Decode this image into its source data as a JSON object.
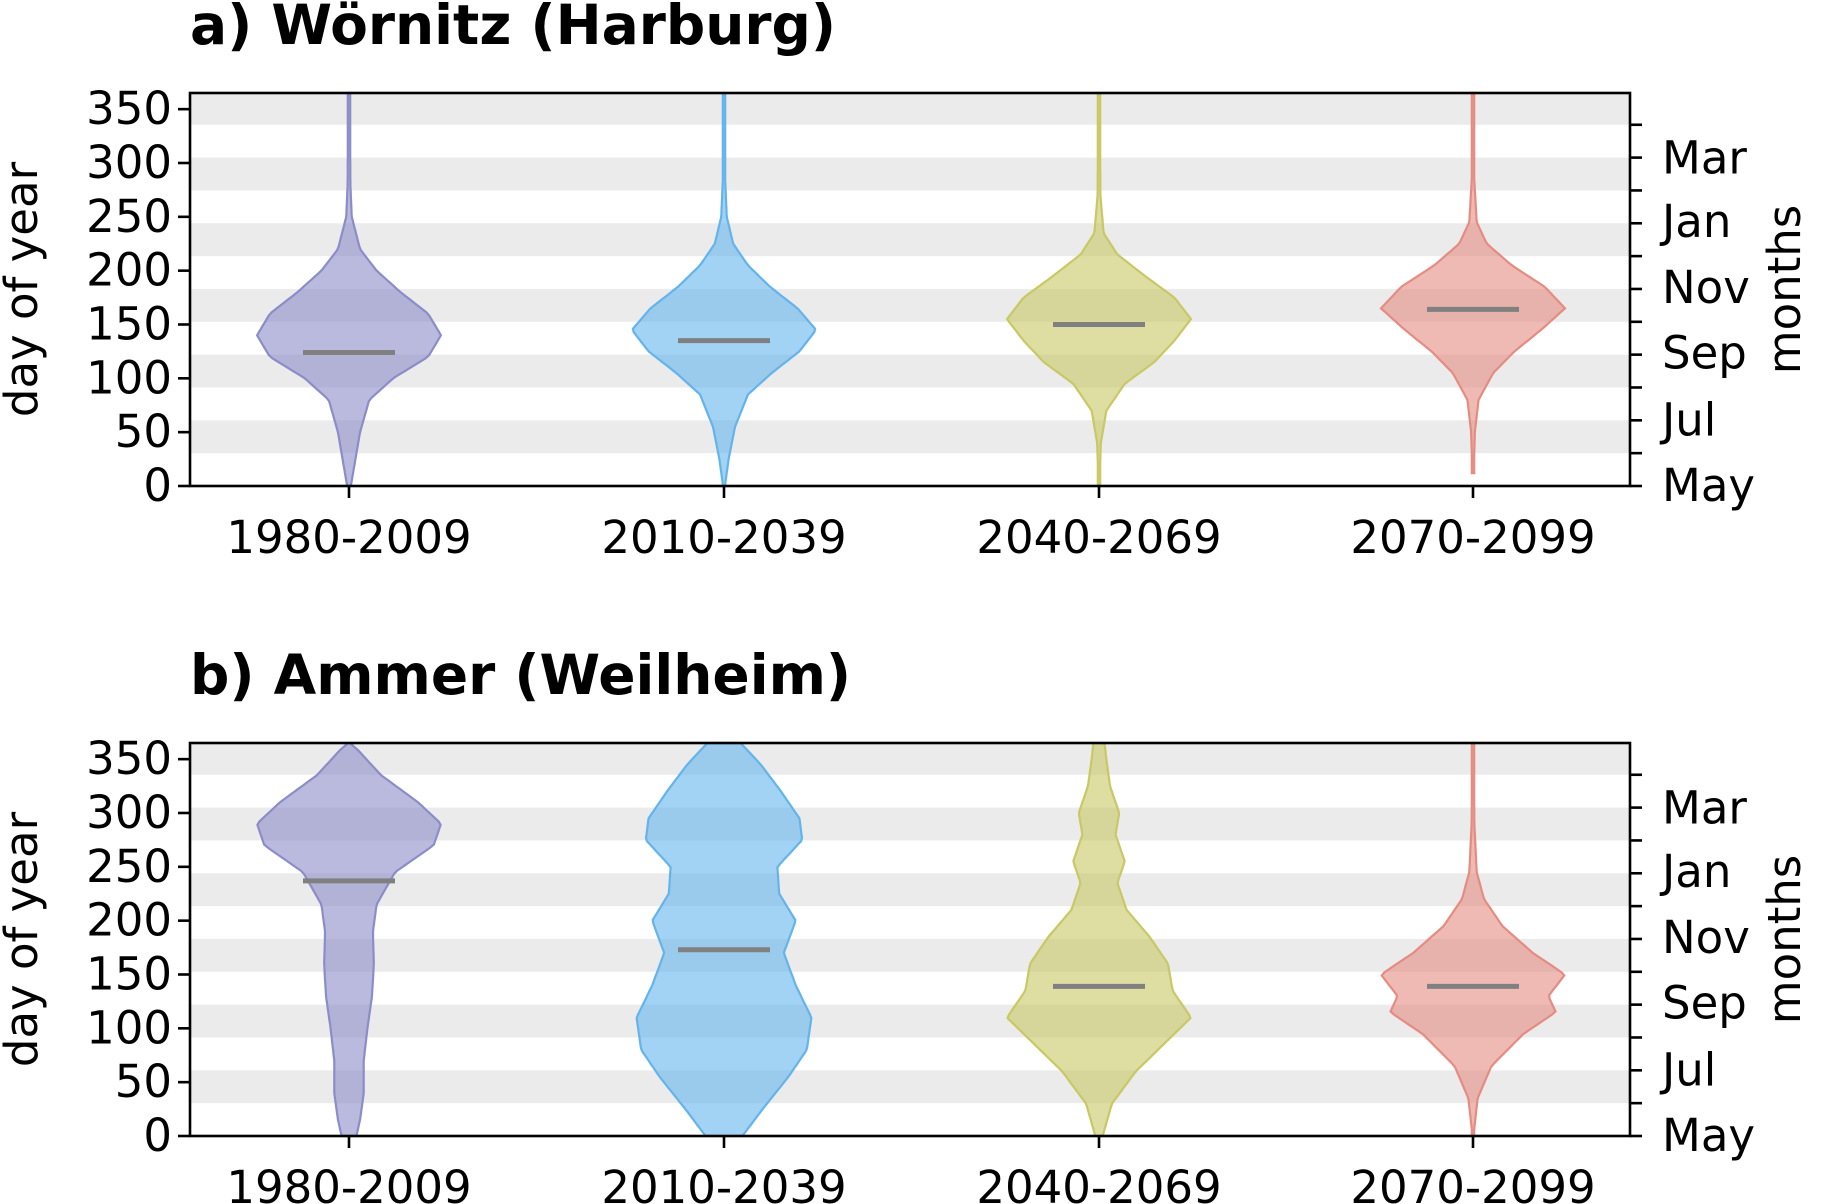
{
  "chart_data": [
    {
      "type": "violin",
      "title": "a) Wörnitz (Harburg)",
      "ylabel": "day of year",
      "y2label": "months",
      "ylim": [
        0,
        365
      ],
      "yticks": [
        0,
        50,
        100,
        150,
        200,
        250,
        300,
        350
      ],
      "month_ticks": [
        "May",
        "Jul",
        "Sep",
        "Nov",
        "Jan",
        "Mar"
      ],
      "month_tick_days": [
        0,
        61,
        123,
        184,
        245,
        304
      ],
      "grid": "horizontal bands (alternate months)",
      "categories": [
        "1980-2009",
        "2010-2039",
        "2040-2069",
        "2070-2099"
      ],
      "colors": [
        "#8c8cc8",
        "#64b4ec",
        "#c8c864",
        "#e48c82"
      ],
      "medians": [
        124,
        135,
        150,
        164
      ],
      "series": [
        {
          "range": [
            0,
            365
          ],
          "profile": [
            [
              0,
              0.02
            ],
            [
              20,
              0.06
            ],
            [
              50,
              0.12
            ],
            [
              80,
              0.22
            ],
            [
              100,
              0.48
            ],
            [
              120,
              0.86
            ],
            [
              140,
              1.0
            ],
            [
              160,
              0.86
            ],
            [
              180,
              0.56
            ],
            [
              200,
              0.3
            ],
            [
              220,
              0.12
            ],
            [
              250,
              0.03
            ],
            [
              280,
              0.015
            ],
            [
              365,
              0.01
            ]
          ]
        },
        {
          "range": [
            0,
            365
          ],
          "profile": [
            [
              0,
              0.01
            ],
            [
              25,
              0.05
            ],
            [
              55,
              0.12
            ],
            [
              85,
              0.26
            ],
            [
              105,
              0.52
            ],
            [
              125,
              0.82
            ],
            [
              145,
              1.0
            ],
            [
              165,
              0.8
            ],
            [
              185,
              0.5
            ],
            [
              205,
              0.26
            ],
            [
              225,
              0.1
            ],
            [
              250,
              0.03
            ],
            [
              290,
              0.01
            ],
            [
              365,
              0.008
            ]
          ]
        },
        {
          "range": [
            0,
            365
          ],
          "profile": [
            [
              0,
              0.005
            ],
            [
              40,
              0.02
            ],
            [
              70,
              0.08
            ],
            [
              95,
              0.28
            ],
            [
              115,
              0.6
            ],
            [
              135,
              0.82
            ],
            [
              155,
              1.0
            ],
            [
              175,
              0.82
            ],
            [
              195,
              0.5
            ],
            [
              215,
              0.2
            ],
            [
              235,
              0.05
            ],
            [
              270,
              0.015
            ],
            [
              365,
              0.008
            ]
          ]
        },
        {
          "range": [
            12,
            365
          ],
          "profile": [
            [
              12,
              0.008
            ],
            [
              50,
              0.02
            ],
            [
              80,
              0.06
            ],
            [
              105,
              0.22
            ],
            [
              125,
              0.45
            ],
            [
              145,
              0.74
            ],
            [
              165,
              1.0
            ],
            [
              185,
              0.78
            ],
            [
              205,
              0.42
            ],
            [
              225,
              0.15
            ],
            [
              245,
              0.04
            ],
            [
              290,
              0.01
            ],
            [
              365,
              0.008
            ]
          ]
        }
      ]
    },
    {
      "type": "violin",
      "title": "b) Ammer (Weilheim)",
      "ylabel": "day of year",
      "y2label": "months",
      "ylim": [
        0,
        365
      ],
      "yticks": [
        0,
        50,
        100,
        150,
        200,
        250,
        300,
        350
      ],
      "month_ticks": [
        "May",
        "Jul",
        "Sep",
        "Nov",
        "Jan",
        "Mar"
      ],
      "month_tick_days": [
        0,
        61,
        123,
        184,
        245,
        304
      ],
      "grid": "horizontal bands (alternate months)",
      "categories": [
        "1980-2009",
        "2010-2039",
        "2040-2069",
        "2070-2099"
      ],
      "colors": [
        "#8c8cc8",
        "#64b4ec",
        "#c8c864",
        "#e48c82"
      ],
      "medians": [
        237,
        173,
        139,
        139
      ],
      "series": [
        {
          "range": [
            0,
            365
          ],
          "profile": [
            [
              0,
              0.08
            ],
            [
              15,
              0.12
            ],
            [
              40,
              0.16
            ],
            [
              70,
              0.16
            ],
            [
              100,
              0.2
            ],
            [
              130,
              0.25
            ],
            [
              160,
              0.27
            ],
            [
              190,
              0.26
            ],
            [
              215,
              0.3
            ],
            [
              245,
              0.5
            ],
            [
              270,
              0.92
            ],
            [
              290,
              1.0
            ],
            [
              310,
              0.75
            ],
            [
              335,
              0.35
            ],
            [
              360,
              0.08
            ],
            [
              365,
              0.0
            ]
          ]
        },
        {
          "range": [
            0,
            365
          ],
          "profile": [
            [
              0,
              0.2
            ],
            [
              25,
              0.42
            ],
            [
              55,
              0.7
            ],
            [
              80,
              0.9
            ],
            [
              110,
              0.95
            ],
            [
              140,
              0.78
            ],
            [
              170,
              0.65
            ],
            [
              200,
              0.78
            ],
            [
              225,
              0.6
            ],
            [
              250,
              0.58
            ],
            [
              275,
              0.85
            ],
            [
              295,
              0.82
            ],
            [
              320,
              0.62
            ],
            [
              345,
              0.4
            ],
            [
              365,
              0.18
            ]
          ]
        },
        {
          "range": [
            0,
            365
          ],
          "profile": [
            [
              0,
              0.04
            ],
            [
              30,
              0.14
            ],
            [
              60,
              0.4
            ],
            [
              85,
              0.7
            ],
            [
              110,
              1.0
            ],
            [
              135,
              0.8
            ],
            [
              160,
              0.75
            ],
            [
              185,
              0.55
            ],
            [
              210,
              0.3
            ],
            [
              235,
              0.2
            ],
            [
              255,
              0.28
            ],
            [
              280,
              0.18
            ],
            [
              300,
              0.22
            ],
            [
              325,
              0.12
            ],
            [
              350,
              0.08
            ],
            [
              365,
              0.06
            ]
          ]
        },
        {
          "range": [
            0,
            365
          ],
          "profile": [
            [
              0,
              0.005
            ],
            [
              35,
              0.05
            ],
            [
              65,
              0.2
            ],
            [
              95,
              0.55
            ],
            [
              115,
              0.9
            ],
            [
              130,
              0.82
            ],
            [
              150,
              1.0
            ],
            [
              170,
              0.65
            ],
            [
              195,
              0.32
            ],
            [
              220,
              0.12
            ],
            [
              245,
              0.04
            ],
            [
              290,
              0.015
            ],
            [
              365,
              0.008
            ]
          ]
        }
      ]
    }
  ]
}
